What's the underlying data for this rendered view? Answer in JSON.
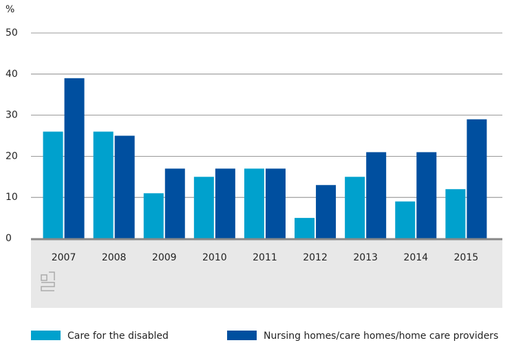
{
  "chart_data": {
    "type": "bar",
    "y_unit": "%",
    "categories": [
      "2007",
      "2008",
      "2009",
      "2010",
      "2011",
      "2012",
      "2013",
      "2014",
      "2015"
    ],
    "series": [
      {
        "name": "Care for the disabled",
        "color": "#00a1cd",
        "values": [
          26,
          26,
          11,
          15,
          17,
          5,
          15,
          9,
          12
        ]
      },
      {
        "name": "Nursing homes/care homes/home care providers",
        "color": "#004f9f",
        "values": [
          39,
          25,
          17,
          17,
          17,
          13,
          21,
          21,
          29
        ]
      }
    ],
    "ylim": [
      0,
      50
    ],
    "yticks": [
      0,
      10,
      20,
      30,
      40,
      50
    ],
    "grid": true,
    "legend": "bottom"
  }
}
